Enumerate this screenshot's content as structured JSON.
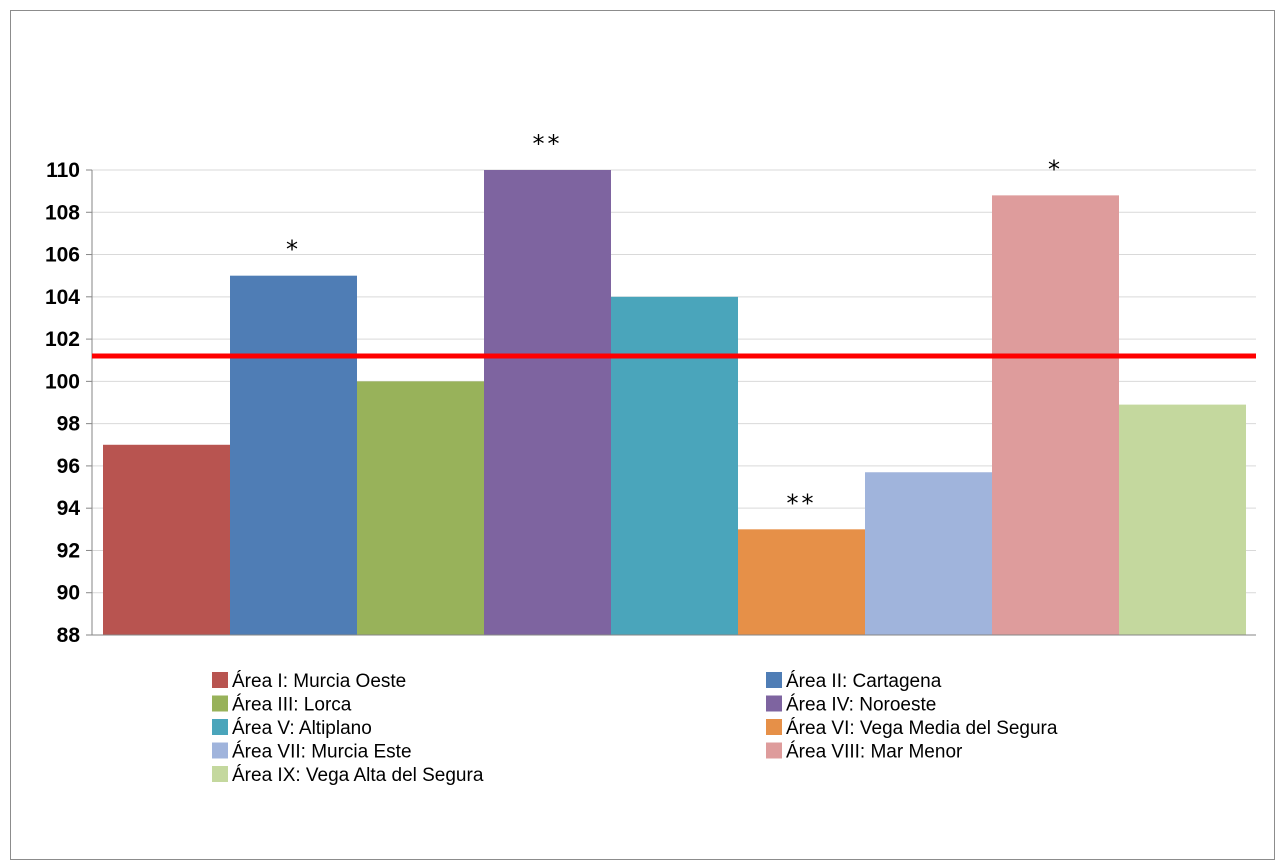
{
  "chart_data": {
    "type": "bar",
    "title": "",
    "xlabel": "",
    "ylabel": "",
    "ylim": [
      88,
      110
    ],
    "yticks": [
      88,
      90,
      92,
      94,
      96,
      98,
      100,
      102,
      104,
      106,
      108,
      110
    ],
    "grid": true,
    "legend_position": "bottom",
    "reference_line": {
      "value": 101.2,
      "color": "#ff0000"
    },
    "bars": [
      {
        "name": "Área I: Murcia Oeste",
        "value": 97.0,
        "color": "#b85450",
        "annotation": ""
      },
      {
        "name": "Área II: Cartagena",
        "value": 105.0,
        "color": "#4f7db5",
        "annotation": "*"
      },
      {
        "name": "Área III: Lorca",
        "value": 100.0,
        "color": "#98b25a",
        "annotation": ""
      },
      {
        "name": "Área IV: Noroeste",
        "value": 110.0,
        "color": "#7e64a0",
        "annotation": "**"
      },
      {
        "name": "Área V: Altiplano",
        "value": 104.0,
        "color": "#4aa5bb",
        "annotation": ""
      },
      {
        "name": "Área VI: Vega Media del Segura",
        "value": 93.0,
        "color": "#e69048",
        "annotation": "**"
      },
      {
        "name": "Área VII: Murcia Este",
        "value": 95.7,
        "color": "#a0b4dc",
        "annotation": ""
      },
      {
        "name": "Área VIII:  Mar Menor",
        "value": 108.8,
        "color": "#de9c9c",
        "annotation": "*"
      },
      {
        "name": "Área IX: Vega Alta del Segura",
        "value": 98.9,
        "color": "#c4d89e",
        "annotation": ""
      }
    ]
  }
}
